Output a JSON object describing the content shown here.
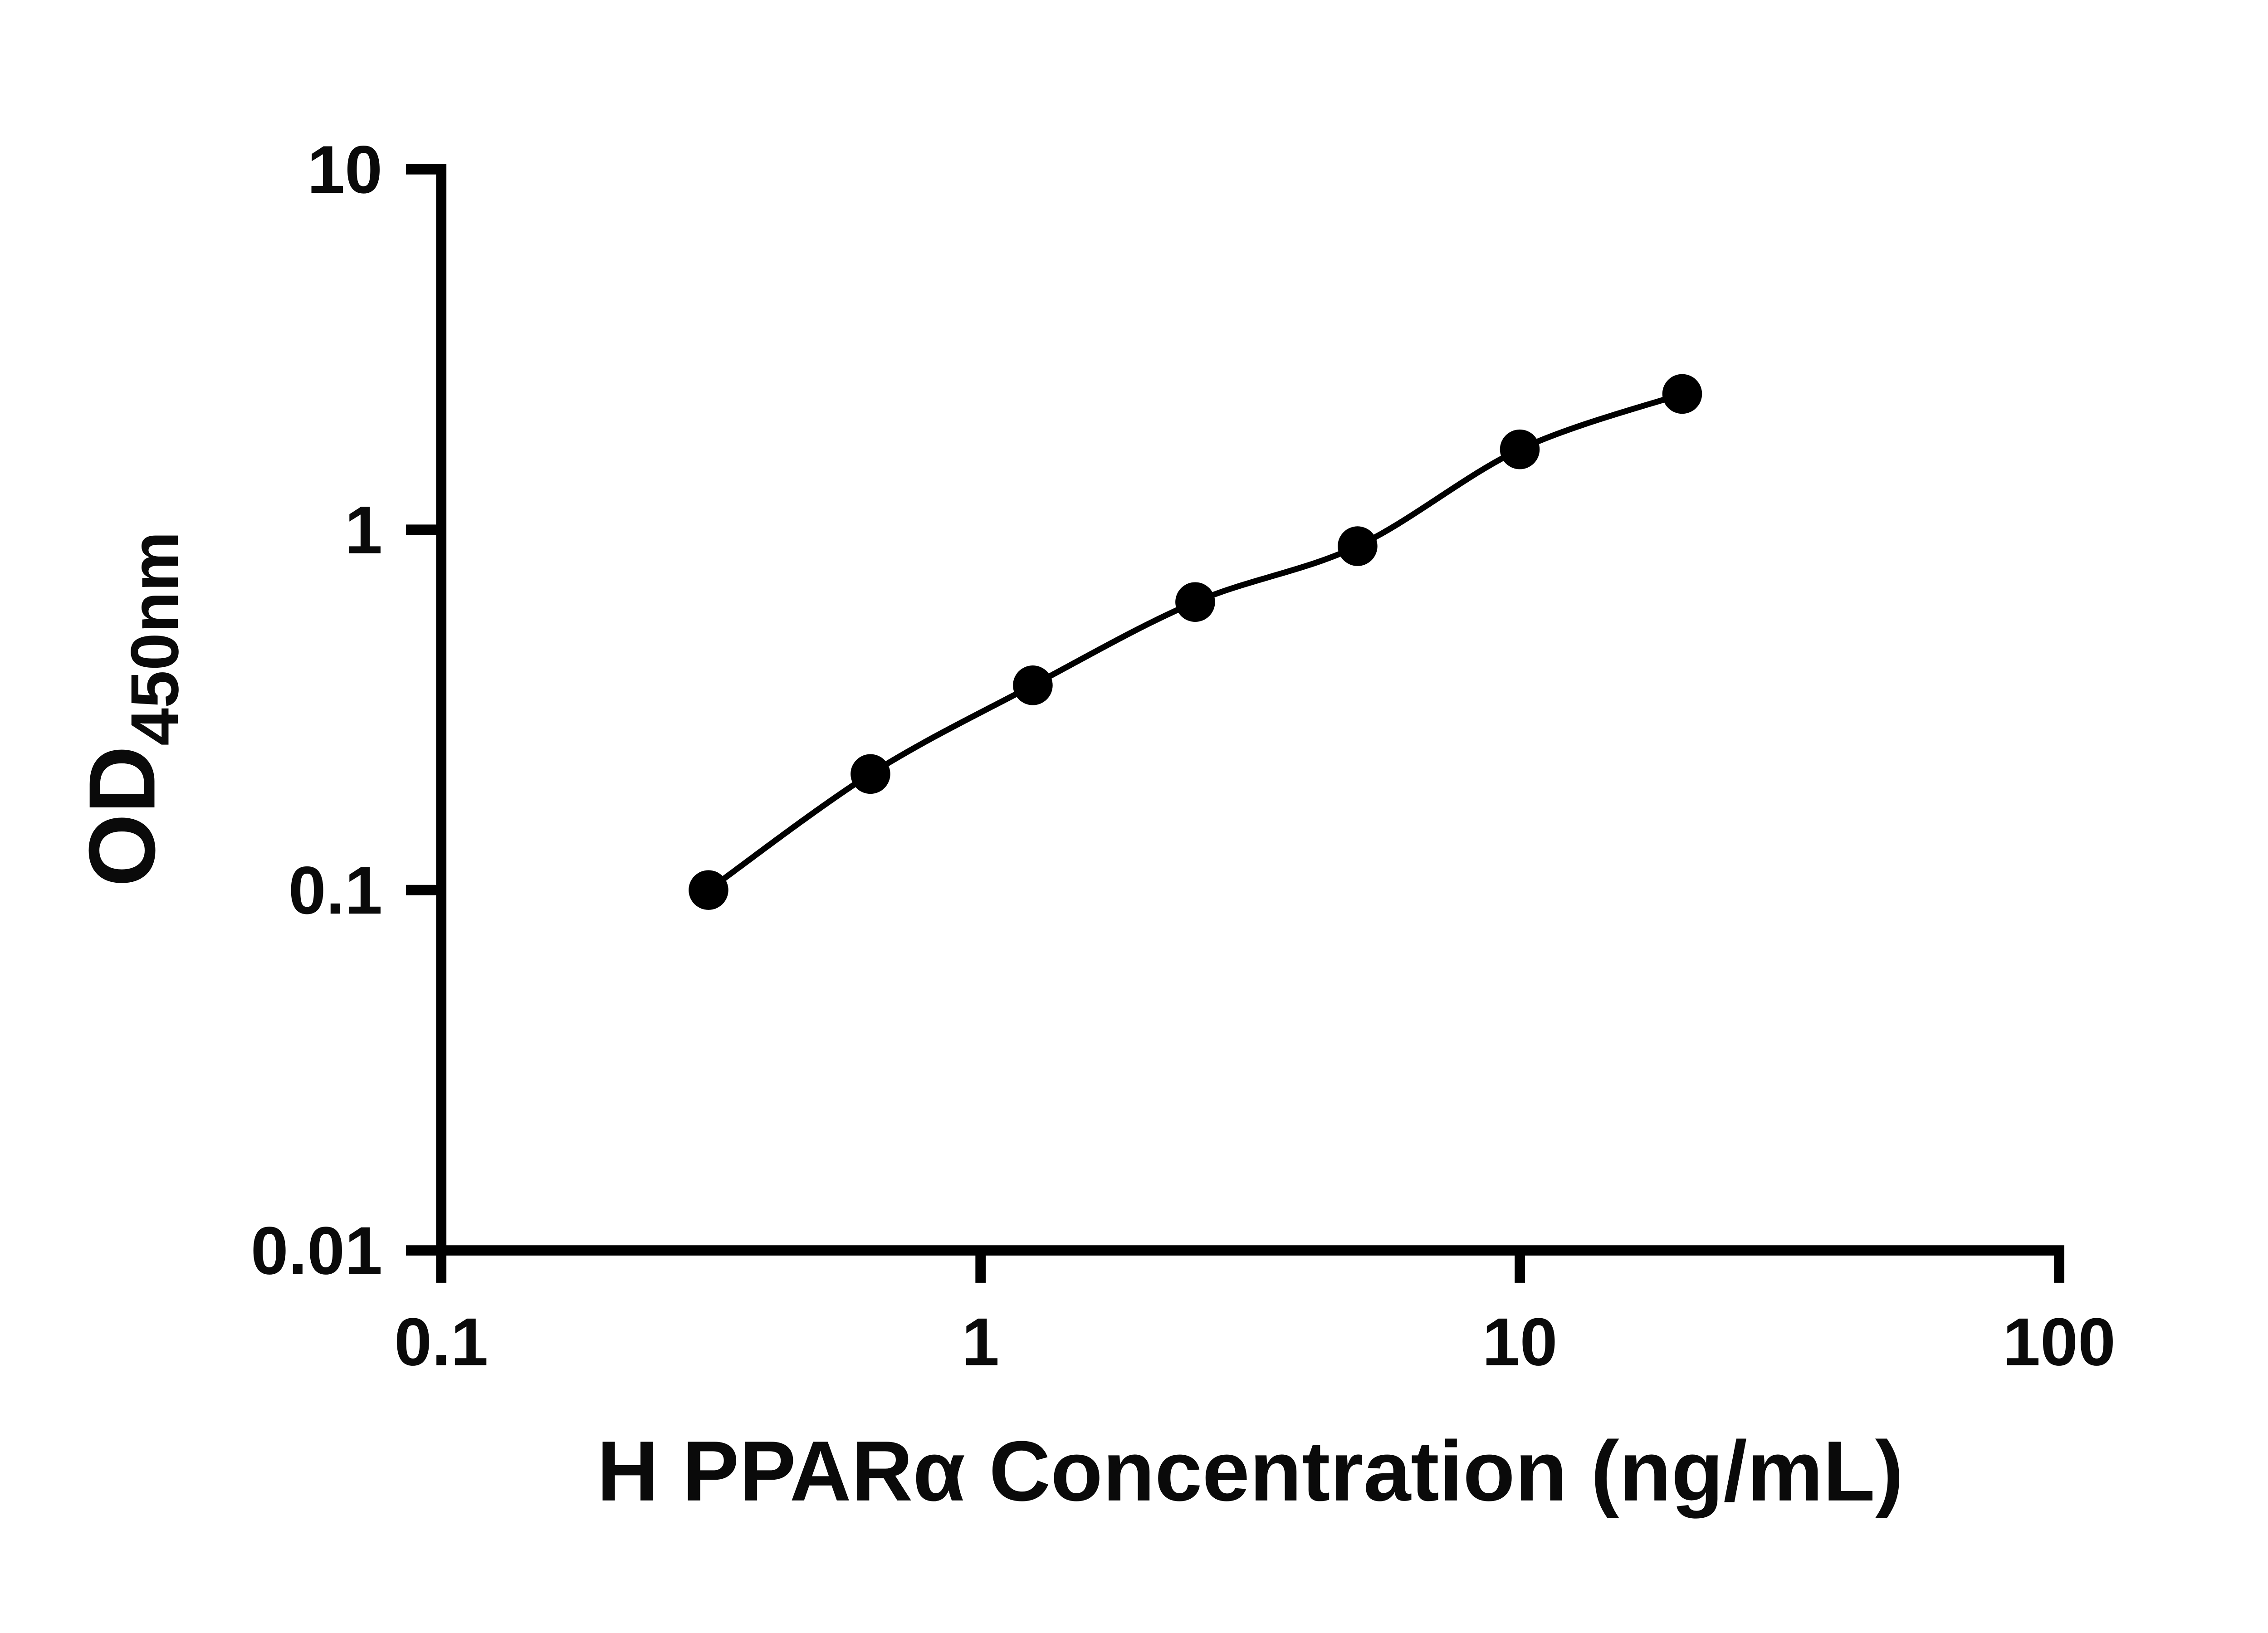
{
  "chart_data": {
    "type": "scatter",
    "title": "",
    "xlabel": "H PPARα Concentration (ng/mL)",
    "ylabel": "OD450nm",
    "ylabel_main": "OD",
    "ylabel_sub": "450nm",
    "x_scale": "log10",
    "y_scale": "log10",
    "xlim": [
      0.1,
      100
    ],
    "ylim": [
      0.01,
      10
    ],
    "x_ticks": [
      "0.1",
      "1",
      "10",
      "100"
    ],
    "y_ticks": [
      "0.01",
      "0.1",
      "1",
      "10"
    ],
    "grid": false,
    "legend": "none",
    "curve": "smooth-fit-through-points",
    "series": [
      {
        "marker": "filled-circle",
        "color": "#000000",
        "x": [
          0.313,
          0.625,
          1.25,
          2.5,
          5,
          10,
          20
        ],
        "y": [
          0.1,
          0.21,
          0.37,
          0.63,
          0.9,
          1.67,
          2.38
        ]
      }
    ]
  },
  "colors": {
    "foreground": "#000000",
    "background": "#ffffff"
  }
}
